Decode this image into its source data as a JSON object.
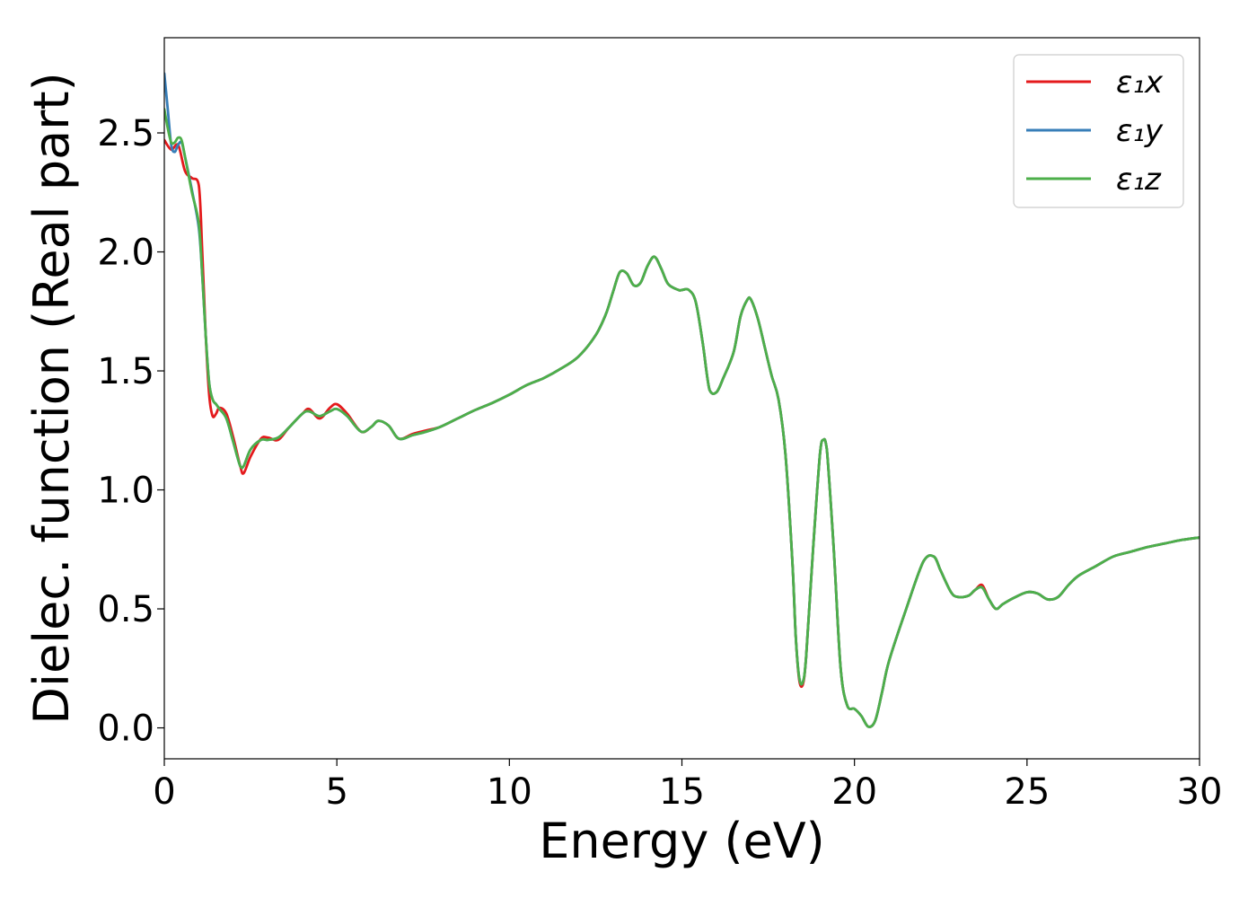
{
  "chart_data": {
    "type": "line",
    "title": "",
    "xlabel": "Energy (eV)",
    "ylabel": "Dielec. function (Real part)",
    "xlim": [
      0,
      30
    ],
    "ylim": [
      -0.13,
      2.9
    ],
    "xticks": [
      0,
      5,
      10,
      15,
      20,
      25,
      30
    ],
    "xtick_labels": [
      "0",
      "5",
      "10",
      "15",
      "20",
      "25",
      "30"
    ],
    "yticks": [
      0.0,
      0.5,
      1.0,
      1.5,
      2.0,
      2.5
    ],
    "ytick_labels": [
      "0.0",
      "0.5",
      "1.0",
      "1.5",
      "2.0",
      "2.5"
    ],
    "grid": false,
    "legend_position": "top-right",
    "series": [
      {
        "name": "ε₁x",
        "color": "#e41a1c",
        "x": [
          0,
          0.2,
          0.4,
          0.6,
          0.8,
          1.0,
          1.1,
          1.2,
          1.3,
          1.4,
          1.5,
          1.6,
          1.8,
          2.0,
          2.2,
          2.3,
          2.5,
          2.8,
          3.0,
          3.3,
          3.6,
          4.0,
          4.2,
          4.5,
          4.8,
          5.0,
          5.3,
          5.7,
          6.0,
          6.2,
          6.5,
          6.8,
          7.2,
          7.6,
          8.0,
          8.5,
          9.0,
          9.5,
          10.0,
          10.5,
          11.0,
          11.5,
          12.0,
          12.5,
          12.8,
          13.0,
          13.2,
          13.4,
          13.6,
          13.8,
          14.0,
          14.2,
          14.4,
          14.6,
          14.9,
          15.0,
          15.2,
          15.4,
          15.6,
          15.8,
          16.0,
          16.2,
          16.5,
          16.7,
          16.9,
          17.0,
          17.2,
          17.4,
          17.6,
          17.8,
          18.0,
          18.2,
          18.3,
          18.4,
          18.5,
          18.6,
          18.8,
          19.0,
          19.1,
          19.2,
          19.4,
          19.6,
          19.8,
          20.0,
          20.2,
          20.4,
          20.6,
          20.8,
          21.0,
          21.5,
          22.0,
          22.3,
          22.5,
          22.8,
          23.0,
          23.3,
          23.5,
          23.7,
          23.9,
          24.1,
          24.3,
          24.6,
          25.0,
          25.3,
          25.6,
          25.9,
          26.2,
          26.5,
          27.0,
          27.5,
          28.0,
          28.5,
          29.0,
          29.5,
          30.0
        ],
        "y": [
          2.47,
          2.43,
          2.45,
          2.34,
          2.31,
          2.28,
          2.0,
          1.65,
          1.4,
          1.31,
          1.32,
          1.345,
          1.32,
          1.22,
          1.1,
          1.07,
          1.14,
          1.215,
          1.22,
          1.21,
          1.26,
          1.32,
          1.34,
          1.3,
          1.345,
          1.36,
          1.32,
          1.245,
          1.265,
          1.29,
          1.27,
          1.215,
          1.235,
          1.25,
          1.265,
          1.3,
          1.335,
          1.365,
          1.4,
          1.44,
          1.47,
          1.51,
          1.56,
          1.65,
          1.74,
          1.83,
          1.915,
          1.91,
          1.86,
          1.87,
          1.94,
          1.98,
          1.93,
          1.865,
          1.84,
          1.84,
          1.84,
          1.79,
          1.62,
          1.42,
          1.41,
          1.47,
          1.58,
          1.73,
          1.8,
          1.8,
          1.72,
          1.6,
          1.48,
          1.38,
          1.15,
          0.7,
          0.38,
          0.2,
          0.18,
          0.3,
          0.75,
          1.15,
          1.21,
          1.17,
          0.75,
          0.25,
          0.09,
          0.08,
          0.05,
          0.005,
          0.03,
          0.15,
          0.28,
          0.5,
          0.7,
          0.72,
          0.66,
          0.57,
          0.55,
          0.555,
          0.58,
          0.6,
          0.54,
          0.5,
          0.52,
          0.545,
          0.57,
          0.565,
          0.54,
          0.55,
          0.6,
          0.64,
          0.68,
          0.72,
          0.74,
          0.76,
          0.775,
          0.79,
          0.8
        ]
      },
      {
        "name": "ε₁y",
        "color": "#377eb8",
        "x": [
          0,
          0.1,
          0.2,
          0.3,
          0.4,
          0.5,
          0.6,
          0.8,
          1.0,
          1.1,
          1.2,
          1.3,
          1.4,
          1.5,
          1.6,
          1.8,
          2.0,
          2.2,
          2.3,
          2.5,
          2.8,
          3.0,
          3.3,
          3.6,
          4.0,
          4.2,
          4.5,
          4.8,
          5.0,
          5.3,
          5.7,
          6.0,
          6.2,
          6.5,
          6.8,
          7.2,
          7.6,
          8.0,
          8.5,
          9.0,
          9.5,
          10.0,
          10.5,
          11.0,
          11.5,
          12.0,
          12.5,
          12.8,
          13.0,
          13.2,
          13.4,
          13.6,
          13.8,
          14.0,
          14.2,
          14.4,
          14.6,
          14.9,
          15.0,
          15.2,
          15.4,
          15.6,
          15.8,
          16.0,
          16.2,
          16.5,
          16.7,
          16.9,
          17.0,
          17.2,
          17.4,
          17.6,
          17.8,
          18.0,
          18.2,
          18.3,
          18.4,
          18.5,
          18.6,
          18.8,
          19.0,
          19.1,
          19.2,
          19.4,
          19.6,
          19.8,
          20.0,
          20.2,
          20.4,
          20.6,
          20.8,
          21.0,
          21.5,
          22.0,
          22.3,
          22.5,
          22.8,
          23.0,
          23.3,
          23.5,
          23.7,
          23.9,
          24.1,
          24.3,
          24.6,
          25.0,
          25.3,
          25.6,
          25.9,
          26.2,
          26.5,
          27.0,
          27.5,
          28.0,
          28.5,
          29.0,
          29.5,
          30.0
        ],
        "y": [
          2.75,
          2.6,
          2.45,
          2.42,
          2.45,
          2.46,
          2.4,
          2.26,
          2.1,
          1.9,
          1.65,
          1.45,
          1.38,
          1.36,
          1.34,
          1.3,
          1.2,
          1.1,
          1.1,
          1.17,
          1.21,
          1.21,
          1.22,
          1.26,
          1.32,
          1.33,
          1.31,
          1.33,
          1.34,
          1.31,
          1.245,
          1.265,
          1.29,
          1.27,
          1.215,
          1.23,
          1.245,
          1.265,
          1.3,
          1.335,
          1.365,
          1.4,
          1.44,
          1.47,
          1.51,
          1.56,
          1.65,
          1.74,
          1.83,
          1.915,
          1.91,
          1.86,
          1.87,
          1.94,
          1.98,
          1.93,
          1.865,
          1.84,
          1.84,
          1.84,
          1.79,
          1.62,
          1.42,
          1.41,
          1.47,
          1.58,
          1.73,
          1.8,
          1.8,
          1.72,
          1.6,
          1.48,
          1.38,
          1.15,
          0.7,
          0.38,
          0.21,
          0.19,
          0.3,
          0.75,
          1.15,
          1.21,
          1.17,
          0.75,
          0.25,
          0.09,
          0.08,
          0.05,
          0.005,
          0.03,
          0.15,
          0.28,
          0.5,
          0.7,
          0.72,
          0.66,
          0.57,
          0.55,
          0.555,
          0.58,
          0.59,
          0.54,
          0.5,
          0.52,
          0.545,
          0.57,
          0.565,
          0.54,
          0.55,
          0.6,
          0.64,
          0.68,
          0.72,
          0.74,
          0.76,
          0.775,
          0.79,
          0.8
        ]
      },
      {
        "name": "ε₁z",
        "color": "#4daf4a",
        "x": [
          0,
          0.1,
          0.2,
          0.3,
          0.4,
          0.5,
          0.6,
          0.8,
          1.0,
          1.1,
          1.2,
          1.3,
          1.4,
          1.5,
          1.6,
          1.8,
          2.0,
          2.2,
          2.3,
          2.5,
          2.8,
          3.0,
          3.3,
          3.6,
          4.0,
          4.2,
          4.5,
          4.8,
          5.0,
          5.3,
          5.7,
          6.0,
          6.2,
          6.5,
          6.8,
          7.2,
          7.6,
          8.0,
          8.5,
          9.0,
          9.5,
          10.0,
          10.5,
          11.0,
          11.5,
          12.0,
          12.5,
          12.8,
          13.0,
          13.2,
          13.4,
          13.6,
          13.8,
          14.0,
          14.2,
          14.4,
          14.6,
          14.9,
          15.0,
          15.2,
          15.4,
          15.6,
          15.8,
          16.0,
          16.2,
          16.5,
          16.7,
          16.9,
          17.0,
          17.2,
          17.4,
          17.6,
          17.8,
          18.0,
          18.2,
          18.3,
          18.4,
          18.5,
          18.6,
          18.8,
          19.0,
          19.1,
          19.2,
          19.4,
          19.6,
          19.8,
          20.0,
          20.2,
          20.4,
          20.6,
          20.8,
          21.0,
          21.5,
          22.0,
          22.3,
          22.5,
          22.8,
          23.0,
          23.3,
          23.5,
          23.7,
          23.9,
          24.1,
          24.3,
          24.6,
          25.0,
          25.3,
          25.6,
          25.9,
          26.2,
          26.5,
          27.0,
          27.5,
          28.0,
          28.5,
          29.0,
          29.5,
          30.0
        ],
        "y": [
          2.6,
          2.52,
          2.46,
          2.46,
          2.48,
          2.47,
          2.4,
          2.25,
          2.12,
          1.9,
          1.65,
          1.45,
          1.38,
          1.36,
          1.34,
          1.3,
          1.2,
          1.1,
          1.1,
          1.17,
          1.21,
          1.21,
          1.22,
          1.26,
          1.32,
          1.33,
          1.31,
          1.33,
          1.34,
          1.31,
          1.245,
          1.265,
          1.29,
          1.27,
          1.215,
          1.23,
          1.245,
          1.265,
          1.3,
          1.335,
          1.365,
          1.4,
          1.44,
          1.47,
          1.51,
          1.56,
          1.65,
          1.74,
          1.83,
          1.915,
          1.91,
          1.86,
          1.87,
          1.94,
          1.98,
          1.93,
          1.865,
          1.84,
          1.84,
          1.84,
          1.79,
          1.62,
          1.42,
          1.41,
          1.47,
          1.58,
          1.73,
          1.8,
          1.8,
          1.72,
          1.6,
          1.48,
          1.38,
          1.15,
          0.7,
          0.38,
          0.21,
          0.19,
          0.3,
          0.75,
          1.15,
          1.21,
          1.17,
          0.75,
          0.25,
          0.09,
          0.08,
          0.05,
          0.005,
          0.03,
          0.15,
          0.28,
          0.5,
          0.7,
          0.72,
          0.66,
          0.57,
          0.55,
          0.555,
          0.58,
          0.59,
          0.54,
          0.5,
          0.52,
          0.545,
          0.57,
          0.565,
          0.54,
          0.55,
          0.6,
          0.64,
          0.68,
          0.72,
          0.74,
          0.76,
          0.775,
          0.79,
          0.8
        ]
      }
    ]
  }
}
